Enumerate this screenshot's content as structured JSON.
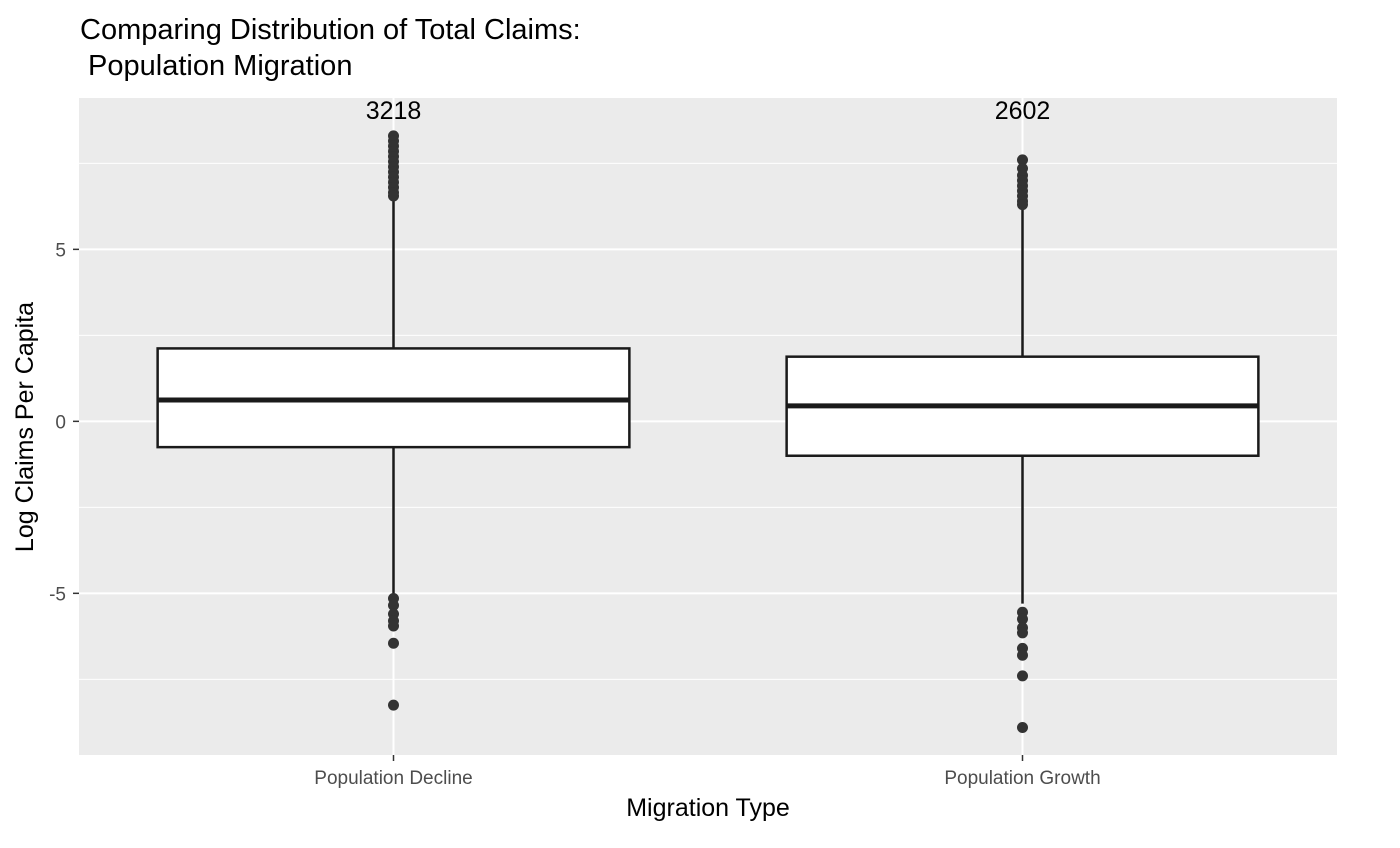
{
  "chart_data": {
    "type": "boxplot",
    "title_lines": [
      "Comparing Distribution of Total Claims:",
      " Population Migration"
    ],
    "xlabel": "Migration Type",
    "ylabel": "Log Claims Per Capita",
    "ylim": [
      -9.7,
      9.4
    ],
    "y_ticks": [
      -5,
      0,
      5
    ],
    "y_tick_labels": [
      "-5",
      "0",
      "5"
    ],
    "y_minor_ticks": [
      -7.5,
      -2.5,
      2.5,
      7.5
    ],
    "grid": true,
    "categories": [
      "Population Decline",
      "Population Growth"
    ],
    "boxes": [
      {
        "category": "Population Decline",
        "count_label": "3218",
        "q1": -0.75,
        "median": 0.62,
        "q3": 2.12,
        "whisker_low": -5.05,
        "whisker_high": 6.45,
        "outliers": [
          8.3,
          8.15,
          8.0,
          7.85,
          7.7,
          7.55,
          7.4,
          7.25,
          7.1,
          6.95,
          6.8,
          6.65,
          6.55,
          -5.15,
          -5.35,
          -5.6,
          -5.8,
          -5.95,
          -6.45,
          -8.25
        ]
      },
      {
        "category": "Population Growth",
        "count_label": "2602",
        "q1": -1.0,
        "median": 0.45,
        "q3": 1.88,
        "whisker_low": -5.3,
        "whisker_high": 6.2,
        "outliers": [
          7.6,
          7.35,
          7.15,
          7.0,
          6.85,
          6.7,
          6.55,
          6.4,
          6.3,
          -5.55,
          -5.75,
          -6.0,
          -6.15,
          -6.6,
          -6.8,
          -7.4,
          -8.9
        ]
      }
    ],
    "colors": {
      "panel": "#ebebeb",
      "grid_major": "#ffffff",
      "box_fill": "#ffffff",
      "box_stroke": "#1a1a1a",
      "outlier": "#333333"
    }
  }
}
